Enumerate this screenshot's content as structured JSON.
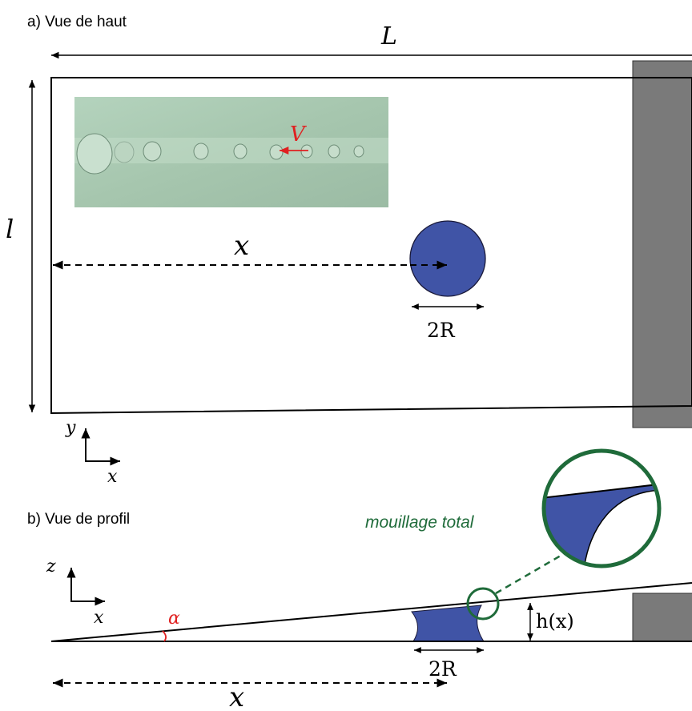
{
  "top_view": {
    "title": "a) Vue de haut",
    "length_label": "L",
    "width_label": "l",
    "x_label": "x",
    "diameter_label": "2R",
    "velocity_label": "V",
    "axis_y": "y",
    "axis_x": "x"
  },
  "side_view": {
    "title": "b) Vue de profil",
    "angle_label": "α",
    "height_label": "h(x)",
    "diameter_label": "2R",
    "x_label": "x",
    "axis_z": "z",
    "axis_x": "x",
    "zoom_label": "mouillage total"
  },
  "colors": {
    "drop_fill": "#4054a6",
    "wedge_block": "#7a7a7a",
    "photo_bg": "#a9c9b2",
    "velocity": "#e02020",
    "zoom_ring": "#1f6b3a",
    "angle": "#e02020"
  }
}
